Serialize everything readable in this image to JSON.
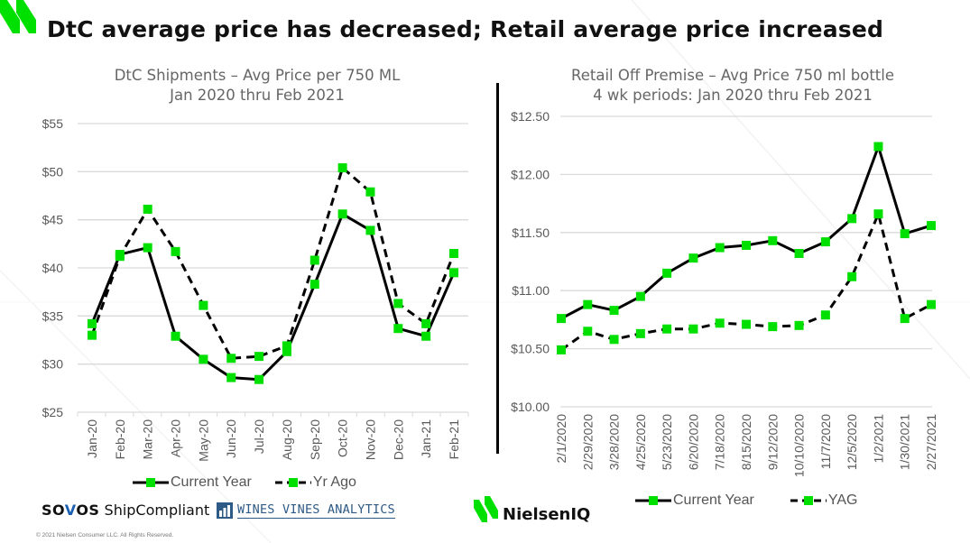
{
  "page": {
    "title": "DtC average price has decreased; Retail average price increased",
    "colors": {
      "brand_green": "#00e000",
      "line": "#000000",
      "marker": "#00e000",
      "grid": "#d9d9d9"
    }
  },
  "footer": {
    "sovos_brand_pre": "SO",
    "sovos_brand_v": "V",
    "sovos_brand_post": "OS",
    "sovos_product": "ShipCompliant",
    "wva_text": "WINES VINES ANALYTICS",
    "copyright": "© 2021 Nielsen Consumer LLC. All Rights Reserved.",
    "niq_text": "NielsenIQ"
  },
  "chart_data": [
    {
      "type": "line",
      "title": "DtC Shipments – Avg Price per 750 ML",
      "subtitle": "Jan 2020 thru Feb 2021",
      "xlabel": "",
      "ylabel": "",
      "ylim": [
        25,
        55
      ],
      "yticks": [
        25,
        30,
        35,
        40,
        45,
        50,
        55
      ],
      "ytick_labels": [
        "$25",
        "$30",
        "$35",
        "$40",
        "$45",
        "$50",
        "$55"
      ],
      "grid": true,
      "legend": "bottom",
      "categories": [
        "Jan-20",
        "Feb-20",
        "Mar-20",
        "Apr-20",
        "May-20",
        "Jun-20",
        "Jul-20",
        "Aug-20",
        "Sep-20",
        "Oct-20",
        "Nov-20",
        "Dec-20",
        "Jan-21",
        "Feb-21"
      ],
      "series": [
        {
          "name": "Current Year",
          "style": "solid",
          "values": [
            34.2,
            41.4,
            42.1,
            32.9,
            30.5,
            28.6,
            28.4,
            31.3,
            38.3,
            45.6,
            43.9,
            33.7,
            32.9,
            39.5
          ]
        },
        {
          "name": "Yr Ago",
          "style": "dashed",
          "values": [
            33.0,
            41.2,
            46.1,
            41.7,
            36.1,
            30.6,
            30.8,
            31.9,
            40.8,
            50.4,
            47.9,
            36.3,
            34.2,
            41.5
          ]
        }
      ]
    },
    {
      "type": "line",
      "title": "Retail Off Premise – Avg Price 750 ml bottle",
      "subtitle": "4 wk periods: Jan 2020 thru Feb 2021",
      "xlabel": "",
      "ylabel": "",
      "ylim": [
        10.0,
        12.5
      ],
      "yticks": [
        10.0,
        10.5,
        11.0,
        11.5,
        12.0,
        12.5
      ],
      "ytick_labels": [
        "$10.00",
        "$10.50",
        "$11.00",
        "$11.50",
        "$12.00",
        "$12.50"
      ],
      "grid": true,
      "legend": "bottom",
      "categories": [
        "2/1/2020",
        "2/29/2020",
        "3/28/2020",
        "4/25/2020",
        "5/23/2020",
        "6/20/2020",
        "7/18/2020",
        "8/15/2020",
        "9/12/2020",
        "10/10/2020",
        "11/7/2020",
        "12/5/2020",
        "1/2/2021",
        "1/30/2021",
        "2/27/2021"
      ],
      "series": [
        {
          "name": "Current Year",
          "style": "solid",
          "values": [
            10.76,
            10.88,
            10.83,
            10.95,
            11.15,
            11.28,
            11.37,
            11.39,
            11.43,
            11.32,
            11.42,
            11.62,
            12.24,
            11.49,
            11.56
          ]
        },
        {
          "name": "YAG",
          "style": "dashed",
          "values": [
            10.49,
            10.65,
            10.58,
            10.63,
            10.67,
            10.67,
            10.72,
            10.71,
            10.69,
            10.7,
            10.79,
            11.12,
            11.66,
            10.76,
            10.88
          ]
        }
      ]
    }
  ]
}
